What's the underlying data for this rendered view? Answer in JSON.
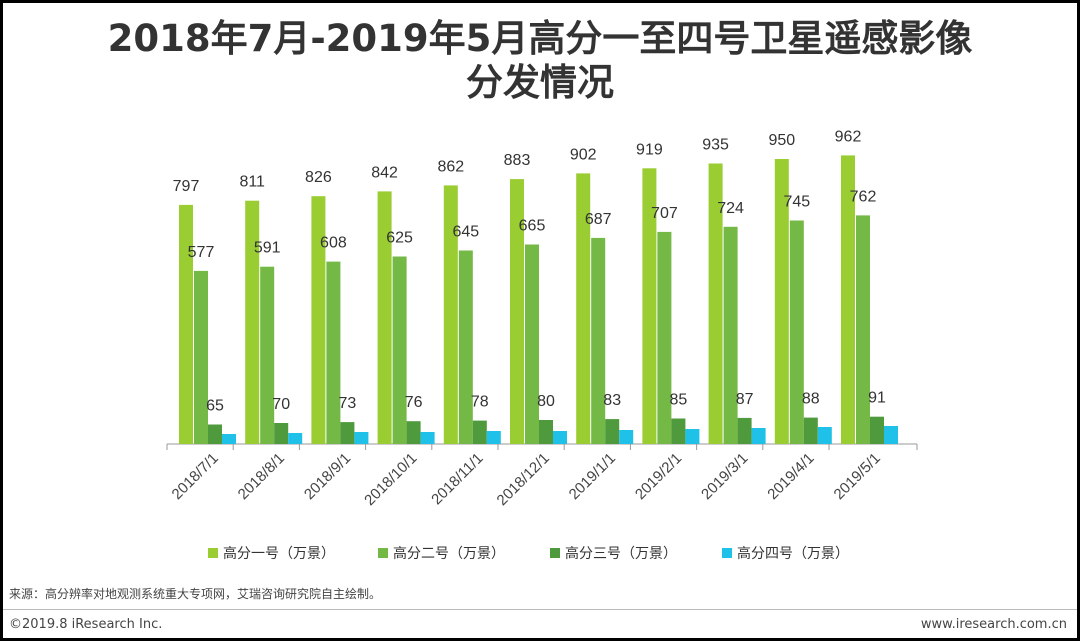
{
  "header": {
    "title_line1": "2018年7月-2019年5月高分一至四号卫星遥感影像",
    "title_line2": "分发情况"
  },
  "chart_data": {
    "type": "bar",
    "categories": [
      "2018/7/1",
      "2018/8/1",
      "2018/9/1",
      "2018/10/1",
      "2018/11/1",
      "2018/12/1",
      "2019/1/1",
      "2019/2/1",
      "2019/3/1",
      "2019/4/1",
      "2019/5/1"
    ],
    "series": [
      {
        "name": "高分一号（万景）",
        "color": "#9ACD32",
        "values": [
          797,
          811,
          826,
          842,
          862,
          883,
          902,
          919,
          935,
          950,
          962
        ]
      },
      {
        "name": "高分二号（万景）",
        "color": "#74B845",
        "values": [
          577,
          591,
          608,
          625,
          645,
          665,
          687,
          707,
          724,
          745,
          762
        ]
      },
      {
        "name": "高分三号（万景）",
        "color": "#4E9A3C",
        "values": [
          65,
          70,
          73,
          76,
          78,
          80,
          83,
          85,
          87,
          88,
          91
        ]
      },
      {
        "name": "高分四号（万景）",
        "color": "#1FC1E8",
        "values": [
          null,
          null,
          null,
          null,
          null,
          null,
          null,
          null,
          null,
          null,
          null
        ]
      }
    ],
    "ylim": [
      0,
      1000
    ],
    "legend_position": "bottom",
    "grid": false
  },
  "footer": {
    "source": "来源：高分辨率对地观测系统重大专项网，艾瑞咨询研究院自主绘制。",
    "copyright": "©2019.8 iResearch Inc.",
    "website": "www.iresearch.com.cn"
  }
}
